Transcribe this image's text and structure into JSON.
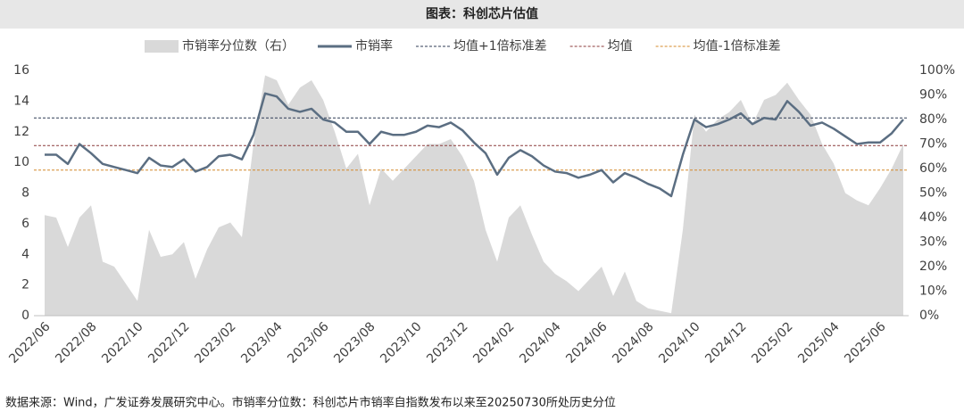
{
  "chart_data": {
    "type": "combo",
    "title": "图表：科创芯片估值",
    "source": "数据来源：Wind，广发证券发展研究中心。市销率分位数：科创芯片市销率自指数发布以来至20250730所处历史分位",
    "categories": [
      "2022/06",
      null,
      null,
      null,
      "2022/08",
      null,
      null,
      null,
      "2022/10",
      null,
      null,
      null,
      "2022/12",
      null,
      null,
      null,
      "2023/02",
      null,
      null,
      null,
      "2023/04",
      null,
      null,
      null,
      "2023/06",
      null,
      null,
      null,
      "2023/08",
      null,
      null,
      null,
      "2023/10",
      null,
      null,
      null,
      "2023/12",
      null,
      null,
      null,
      "2024/02",
      null,
      null,
      null,
      "2024/04",
      null,
      null,
      null,
      "2024/06",
      null,
      null,
      null,
      "2024/08",
      null,
      null,
      null,
      "2024/10",
      null,
      null,
      null,
      "2024/12",
      null,
      null,
      null,
      "2025/02",
      null,
      null,
      null,
      "2025/04",
      null,
      null,
      null,
      "2025/06",
      null,
      null
    ],
    "series": [
      {
        "name": "市销率分位数（右）",
        "type": "area",
        "axis": "y2",
        "color": "#d9d9d9",
        "values": [
          41,
          40,
          28,
          40,
          45,
          22,
          20,
          13,
          6,
          35,
          24,
          25,
          30,
          15,
          27,
          36,
          38,
          32,
          70,
          98,
          96,
          86,
          93,
          96,
          88,
          75,
          60,
          66,
          45,
          60,
          55,
          60,
          65,
          70,
          70,
          72,
          65,
          55,
          35,
          22,
          40,
          45,
          33,
          22,
          17,
          14,
          10,
          15,
          20,
          8,
          18,
          6,
          3,
          2,
          1,
          35,
          82,
          75,
          80,
          83,
          88,
          78,
          88,
          90,
          95,
          88,
          82,
          70,
          62,
          50,
          47,
          45,
          52,
          60,
          70
        ]
      },
      {
        "name": "市销率",
        "type": "line",
        "color": "#5b6e82",
        "values": [
          10.5,
          10.5,
          9.9,
          11.2,
          10.6,
          9.9,
          9.7,
          9.5,
          9.3,
          10.3,
          9.8,
          9.7,
          10.2,
          9.4,
          9.7,
          10.4,
          10.5,
          10.2,
          11.8,
          14.5,
          14.3,
          13.5,
          13.3,
          13.5,
          12.8,
          12.6,
          12.0,
          12.0,
          11.2,
          12.0,
          11.8,
          11.8,
          12.0,
          12.4,
          12.3,
          12.6,
          12.1,
          11.3,
          10.6,
          9.2,
          10.3,
          10.8,
          10.4,
          9.8,
          9.4,
          9.3,
          9.0,
          9.2,
          9.5,
          8.7,
          9.3,
          9.0,
          8.6,
          8.3,
          7.8,
          10.5,
          12.8,
          12.3,
          12.5,
          12.8,
          13.2,
          12.5,
          12.9,
          12.8,
          14.0,
          13.3,
          12.4,
          12.6,
          12.2,
          11.7,
          11.2,
          11.3,
          11.3,
          11.9,
          12.8
        ]
      }
    ],
    "reference_lines": [
      {
        "name": "均值+1倍标准差",
        "value": 12.9,
        "color": "#2f3b55"
      },
      {
        "name": "均值",
        "value": 11.1,
        "color": "#8b3a3a"
      },
      {
        "name": "均值-1倍标准差",
        "value": 9.5,
        "color": "#d4892a"
      }
    ],
    "ylim": [
      0,
      16
    ],
    "yticks": [
      0,
      2,
      4,
      6,
      8,
      10,
      12,
      14,
      16
    ],
    "y2lim": [
      0,
      100
    ],
    "y2ticks": [
      {
        "value": 0,
        "label": "0%"
      },
      {
        "value": 10,
        "label": "10%"
      },
      {
        "value": 20,
        "label": "20%"
      },
      {
        "value": 30,
        "label": "30%"
      },
      {
        "value": 40,
        "label": "40%"
      },
      {
        "value": 50,
        "label": "50%"
      },
      {
        "value": 60,
        "label": "60%"
      },
      {
        "value": 70,
        "label": "70%"
      },
      {
        "value": 80,
        "label": "80%"
      },
      {
        "value": 90,
        "label": "90%"
      },
      {
        "value": 100,
        "label": "100%"
      }
    ]
  }
}
